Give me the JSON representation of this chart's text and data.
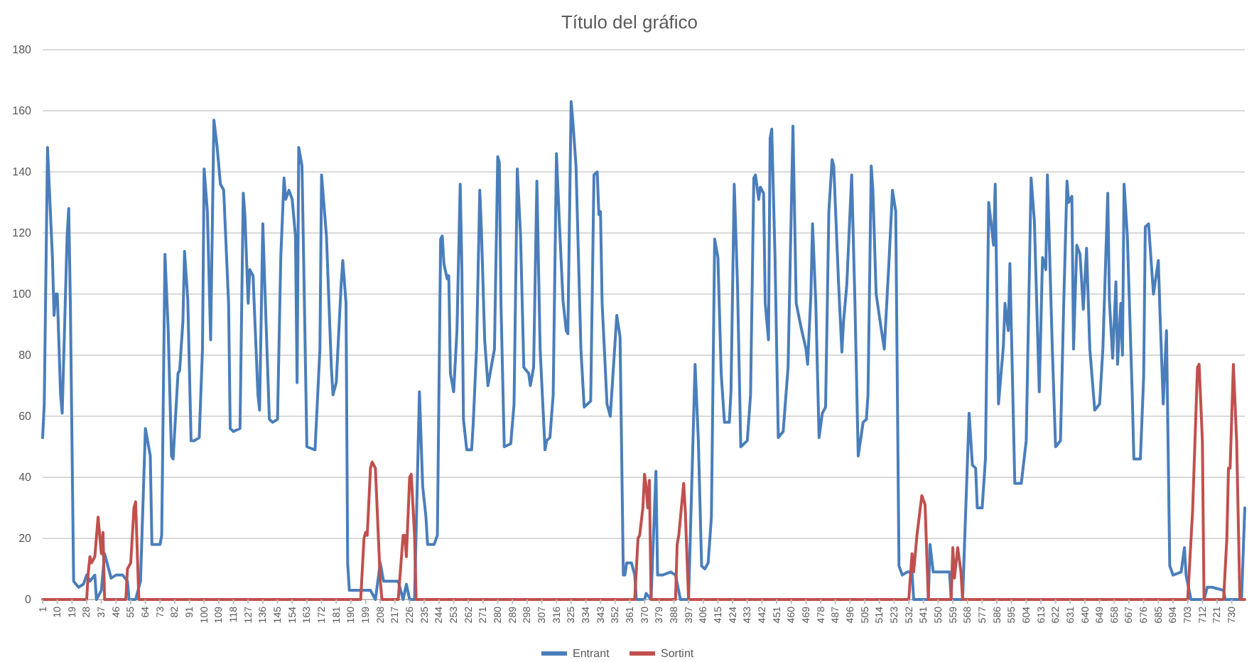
{
  "chart_data": {
    "type": "line",
    "title": "Título del gráfico",
    "xlim": [
      1,
      738
    ],
    "xticks": [
      1,
      10,
      19,
      28,
      37,
      46,
      55,
      64,
      73,
      82,
      91,
      100,
      109,
      118,
      127,
      136,
      145,
      154,
      163,
      172,
      181,
      190,
      199,
      208,
      217,
      226,
      235,
      244,
      253,
      262,
      271,
      280,
      289,
      298,
      307,
      316,
      325,
      334,
      343,
      352,
      361,
      370,
      379,
      388,
      397,
      406,
      415,
      424,
      433,
      442,
      451,
      460,
      469,
      478,
      487,
      496,
      505,
      514,
      523,
      532,
      541,
      550,
      559,
      568,
      577,
      586,
      595,
      604,
      613,
      622,
      631,
      640,
      649,
      658,
      667,
      676,
      685,
      694,
      703,
      712,
      721,
      730
    ],
    "ylim": [
      0,
      180
    ],
    "yticks": [
      0,
      20,
      40,
      60,
      80,
      100,
      120,
      140,
      160,
      180
    ],
    "grid": "y",
    "legend": "bottom",
    "marker": "none",
    "line_style": "solid",
    "series": [
      {
        "name": "Entrant",
        "color": "#4a7ebb",
        "x": [
          1,
          2,
          4,
          7,
          8,
          9,
          10,
          12,
          13,
          16,
          17,
          18,
          20,
          23,
          26,
          28,
          30,
          33,
          34,
          37,
          39,
          41,
          43,
          46,
          50,
          53,
          54,
          58,
          61,
          64,
          67,
          68,
          73,
          74,
          76,
          78,
          80,
          81,
          84,
          85,
          87,
          88,
          90,
          92,
          94,
          97,
          99,
          100,
          102,
          104,
          106,
          108,
          110,
          112,
          115,
          116,
          118,
          122,
          124,
          125,
          127,
          128,
          130,
          133,
          134,
          136,
          137,
          140,
          142,
          145,
          147,
          149,
          150,
          152,
          154,
          156,
          157,
          158,
          160,
          161,
          163,
          168,
          171,
          172,
          175,
          178,
          179,
          181,
          184,
          185,
          187,
          188,
          189,
          202,
          205,
          208,
          210,
          214,
          219,
          222,
          224,
          226,
          229,
          232,
          234,
          236,
          237,
          241,
          243,
          245,
          246,
          247,
          249,
          250,
          251,
          253,
          255,
          257,
          258,
          259,
          261,
          264,
          265,
          267,
          269,
          270,
          272,
          274,
          276,
          278,
          280,
          281,
          282,
          284,
          288,
          290,
          292,
          294,
          296,
          299,
          300,
          302,
          304,
          306,
          309,
          310,
          312,
          314,
          316,
          318,
          320,
          322,
          323,
          325,
          326,
          328,
          331,
          333,
          337,
          339,
          341,
          342,
          343,
          344,
          347,
          349,
          353,
          355,
          357,
          358,
          359,
          362,
          364,
          365,
          370,
          371,
          374,
          377,
          378,
          381,
          386,
          389,
          392,
          397,
          401,
          403,
          405,
          407,
          409,
          411,
          413,
          415,
          417,
          419,
          422,
          423,
          425,
          427,
          429,
          433,
          435,
          437,
          438,
          440,
          441,
          443,
          444,
          446,
          447,
          448,
          450,
          452,
          455,
          458,
          461,
          463,
          466,
          469,
          470,
          472,
          473,
          475,
          477,
          479,
          481,
          483,
          485,
          486,
          489,
          491,
          492,
          494,
          497,
          499,
          501,
          504,
          506,
          507,
          509,
          510,
          512,
          515,
          517,
          520,
          522,
          524,
          526,
          528,
          531,
          534,
          535,
          544,
          545,
          547,
          549,
          557,
          558,
          565,
          569,
          571,
          573,
          574,
          577,
          579,
          581,
          584,
          585,
          587,
          590,
          591,
          593,
          594,
          597,
          601,
          604,
          607,
          609,
          612,
          614,
          616,
          617,
          620,
          622,
          625,
          627,
          629,
          630,
          632,
          633,
          635,
          637,
          639,
          641,
          643,
          646,
          649,
          651,
          654,
          655,
          657,
          659,
          660,
          662,
          663,
          664,
          666,
          669,
          670,
          674,
          676,
          677,
          679,
          682,
          685,
          686,
          688,
          690,
          692,
          694,
          699,
          701,
          702,
          705,
          713,
          715,
          718,
          725,
          726,
          736,
          738
        ],
        "values": [
          53,
          64,
          148,
          112,
          93,
          100,
          100,
          67,
          61,
          119,
          128,
          97,
          6,
          4,
          5,
          8,
          6,
          8,
          0,
          3,
          15,
          11,
          7,
          8,
          8,
          6,
          0,
          0,
          6,
          56,
          47,
          18,
          18,
          21,
          113,
          88,
          47,
          46,
          74,
          75,
          91,
          114,
          98,
          52,
          52,
          53,
          82,
          141,
          127,
          85,
          157,
          148,
          136,
          134,
          97,
          56,
          55,
          56,
          133,
          126,
          97,
          108,
          106,
          67,
          62,
          123,
          106,
          59,
          58,
          59,
          112,
          138,
          131,
          134,
          131,
          119,
          71,
          148,
          142,
          112,
          50,
          49,
          82,
          139,
          119,
          76,
          67,
          71,
          103,
          111,
          97,
          12,
          3,
          3,
          0,
          12,
          6,
          6,
          6,
          0,
          5,
          0,
          0,
          68,
          37,
          27,
          18,
          18,
          21,
          118,
          119,
          110,
          105,
          106,
          74,
          68,
          88,
          136,
          109,
          59,
          49,
          49,
          58,
          82,
          134,
          121,
          85,
          70,
          76,
          82,
          145,
          143,
          97,
          50,
          51,
          64,
          141,
          119,
          76,
          74,
          70,
          76,
          137,
          82,
          49,
          52,
          53,
          67,
          146,
          121,
          98,
          88,
          87,
          163,
          157,
          142,
          82,
          63,
          65,
          139,
          140,
          126,
          127,
          97,
          64,
          60,
          93,
          86,
          8,
          8,
          12,
          12,
          8,
          0,
          0,
          2,
          0,
          42,
          8,
          8,
          9,
          8,
          0,
          0,
          77,
          52,
          11,
          10,
          12,
          27,
          118,
          112,
          74,
          58,
          58,
          68,
          136,
          103,
          50,
          52,
          67,
          138,
          139,
          131,
          135,
          133,
          97,
          85,
          151,
          154,
          112,
          53,
          55,
          76,
          155,
          97,
          89,
          82,
          77,
          100,
          123,
          97,
          53,
          61,
          63,
          127,
          144,
          142,
          103,
          81,
          91,
          103,
          139,
          97,
          47,
          58,
          59,
          67,
          142,
          134,
          100,
          89,
          82,
          112,
          134,
          127,
          11,
          8,
          9,
          9,
          0,
          0,
          18,
          9,
          9,
          9,
          0,
          0,
          61,
          44,
          43,
          30,
          30,
          46,
          130,
          116,
          136,
          64,
          83,
          97,
          88,
          110,
          38,
          38,
          52,
          138,
          124,
          68,
          112,
          108,
          139,
          82,
          50,
          52,
          97,
          137,
          130,
          132,
          82,
          116,
          113,
          95,
          115,
          82,
          62,
          64,
          82,
          133,
          98,
          79,
          104,
          77,
          97,
          80,
          136,
          119,
          67,
          46,
          46,
          73,
          122,
          123,
          100,
          111,
          94,
          64,
          88,
          11,
          8,
          9,
          17,
          8,
          0,
          0,
          4,
          4,
          3,
          0,
          0,
          30
        ]
      },
      {
        "name": "Sortint",
        "color": "#c0504d",
        "x": [
          1,
          28,
          29,
          30,
          31,
          33,
          35,
          36,
          37,
          38,
          39,
          52,
          53,
          55,
          57,
          58,
          60,
          196,
          198,
          199,
          200,
          202,
          203,
          205,
          208,
          209,
          219,
          222,
          223,
          224,
          226,
          227,
          229,
          230,
          364,
          366,
          367,
          369,
          370,
          371,
          372,
          373,
          374,
          389,
          390,
          391,
          394,
          395,
          397,
          532,
          534,
          535,
          537,
          540,
          542,
          544,
          558,
          559,
          560,
          562,
          564,
          565,
          703,
          706,
          709,
          710,
          712,
          713,
          725,
          727,
          728,
          729,
          731,
          733,
          735,
          738
        ],
        "values": [
          0,
          0,
          9,
          14,
          12,
          14,
          27,
          21,
          15,
          22,
          0,
          0,
          10,
          12,
          30,
          32,
          0,
          0,
          20,
          22,
          21,
          43,
          45,
          43,
          6,
          0,
          0,
          21,
          21,
          14,
          40,
          41,
          21,
          0,
          0,
          20,
          21,
          30,
          41,
          37,
          30,
          39,
          0,
          0,
          18,
          21,
          38,
          29,
          0,
          0,
          15,
          9,
          21,
          34,
          31,
          0,
          0,
          17,
          7,
          17,
          9,
          0,
          0,
          29,
          76,
          77,
          52,
          0,
          0,
          20,
          43,
          43,
          77,
          52,
          0,
          0
        ]
      }
    ]
  }
}
